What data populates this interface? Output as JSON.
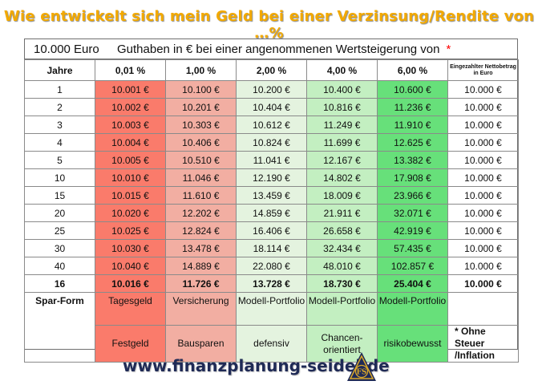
{
  "title": "Wie entwickelt sich mein Geld bei einer Verzinsung/Rendite von …%",
  "headline": {
    "amount": "10.000 Euro",
    "description": "Guthaben in € bei einer angenommenen Wertsteigerung von",
    "asterisk": "*"
  },
  "columns": [
    "Jahre",
    "0,01 %",
    "1,00 %",
    "2,00 %",
    "4,00 %",
    "6,00  %",
    "Eingezahlter Nettobetrag in Euro"
  ],
  "rows": [
    [
      "1",
      "10.001 €",
      "10.100 €",
      "10.200 €",
      "10.400 €",
      "10.600 €",
      "10.000 €"
    ],
    [
      "2",
      "10.002 €",
      "10.201 €",
      "10.404 €",
      "10.816 €",
      "11.236 €",
      "10.000 €"
    ],
    [
      "3",
      "10.003 €",
      "10.303 €",
      "10.612 €",
      "11.249 €",
      "11.910 €",
      "10.000 €"
    ],
    [
      "4",
      "10.004 €",
      "10.406 €",
      "10.824 €",
      "11.699 €",
      "12.625 €",
      "10.000 €"
    ],
    [
      "5",
      "10.005 €",
      "10.510 €",
      "11.041 €",
      "12.167 €",
      "13.382 €",
      "10.000 €"
    ],
    [
      "10",
      "10.010 €",
      "11.046 €",
      "12.190 €",
      "14.802 €",
      "17.908 €",
      "10.000 €"
    ],
    [
      "15",
      "10.015 €",
      "11.610 €",
      "13.459 €",
      "18.009 €",
      "23.966 €",
      "10.000 €"
    ],
    [
      "20",
      "10.020 €",
      "12.202 €",
      "14.859 €",
      "21.911 €",
      "32.071 €",
      "10.000 €"
    ],
    [
      "25",
      "10.025 €",
      "12.824 €",
      "16.406 €",
      "26.658 €",
      "42.919 €",
      "10.000 €"
    ],
    [
      "30",
      "10.030 €",
      "13.478 €",
      "18.114 €",
      "32.434 €",
      "57.435 €",
      "10.000 €"
    ],
    [
      "40",
      "10.040 €",
      "14.889 €",
      "22.080 €",
      "48.010 €",
      "102.857 €",
      "10.000 €"
    ]
  ],
  "highlight_row": [
    "16",
    "10.016 €",
    "11.726 €",
    "13.728 €",
    "18.730 €",
    "25.404 €",
    "10.000 €"
  ],
  "spar": {
    "label": "Spar-Form",
    "row1": [
      "Tagesgeld",
      "Versicherung",
      "Modell-Portfolio",
      "Modell-Portfolio",
      "Modell-Portfolio"
    ],
    "row2": [
      "Festgeld",
      "Bausparen",
      "defensiv",
      "Chancen-orientiert",
      "risikobewusst"
    ],
    "note": "* Ohne Steuer /Inflation"
  },
  "footer": {
    "url": "www.finanzplanung-seidel.de",
    "logo_text": "FS"
  },
  "colors": {
    "title": "#f2a900",
    "col_0_01": "#fa7b6b",
    "col_1": "#f2aea2",
    "col_2": "#e4f3df",
    "col_4": "#c3efc1",
    "col_6": "#67e07a",
    "url": "#1f2a56",
    "logo_gold": "#d9a72a",
    "logo_navy": "#1f2a56"
  }
}
